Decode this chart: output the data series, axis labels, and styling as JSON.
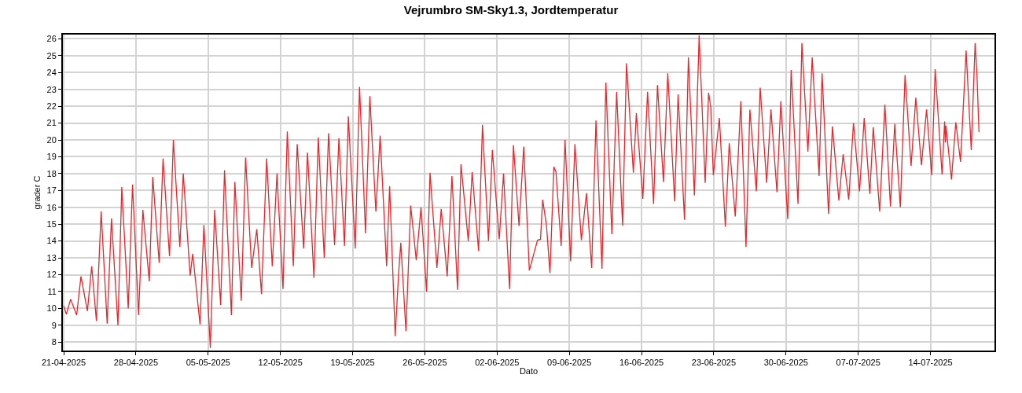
{
  "chart_data": {
    "type": "line",
    "title": "Vejrumbro SM-Sky1.3, Jordtemperatur",
    "xlabel": "Dato",
    "ylabel": "grader C",
    "series": [
      {
        "color": "#e8262b",
        "x": [
          "2025-04-21T00:00",
          "2025-04-21T06:00",
          "2025-04-21T16:00",
          "2025-04-22T06:00",
          "2025-04-22T16:00",
          "2025-04-23T07:00",
          "2025-04-23T17:00",
          "2025-04-24T04:00",
          "2025-04-24T15:00",
          "2025-04-25T05:00",
          "2025-04-25T15:00",
          "2025-04-26T06:00",
          "2025-04-26T15:00",
          "2025-04-27T06:00",
          "2025-04-27T16:00",
          "2025-04-28T06:00",
          "2025-04-28T16:00",
          "2025-04-29T07:00",
          "2025-04-29T15:00",
          "2025-04-30T06:00",
          "2025-04-30T15:00",
          "2025-05-01T06:00",
          "2025-05-01T15:00",
          "2025-05-02T06:00",
          "2025-05-02T14:00",
          "2025-05-03T06:00",
          "2025-05-03T12:00",
          "2025-05-04T05:00",
          "2025-05-04T14:00",
          "2025-05-05T05:00",
          "2025-05-05T15:00",
          "2025-05-06T05:00",
          "2025-05-06T14:00",
          "2025-05-07T06:00",
          "2025-05-07T14:00",
          "2025-05-08T05:00",
          "2025-05-08T15:00",
          "2025-05-09T05:00",
          "2025-05-09T17:00",
          "2025-05-10T04:00",
          "2025-05-10T16:00",
          "2025-05-11T05:00",
          "2025-05-11T16:00",
          "2025-05-12T06:00",
          "2025-05-12T16:00",
          "2025-05-13T06:00",
          "2025-05-13T15:00",
          "2025-05-14T06:00",
          "2025-05-14T15:00",
          "2025-05-15T06:00",
          "2025-05-15T16:00",
          "2025-05-16T06:00",
          "2025-05-16T16:00",
          "2025-05-17T06:00",
          "2025-05-17T16:00",
          "2025-05-18T05:00",
          "2025-05-18T14:00",
          "2025-05-19T06:00",
          "2025-05-19T16:00",
          "2025-05-20T06:00",
          "2025-05-20T16:00",
          "2025-05-21T06:00",
          "2025-05-21T16:00",
          "2025-05-22T07:00",
          "2025-05-22T14:00",
          "2025-05-23T03:00",
          "2025-05-23T11:00",
          "2025-05-23T16:00",
          "2025-05-24T04:00",
          "2025-05-24T15:00",
          "2025-05-25T04:00",
          "2025-05-25T15:00",
          "2025-05-26T04:00",
          "2025-05-26T12:00",
          "2025-05-27T04:00",
          "2025-05-27T14:00",
          "2025-05-28T04:00",
          "2025-05-28T15:00",
          "2025-05-29T04:00",
          "2025-05-29T12:00",
          "2025-05-30T05:00",
          "2025-05-30T14:00",
          "2025-05-31T05:00",
          "2025-05-31T14:00",
          "2025-06-01T04:00",
          "2025-06-01T13:00",
          "2025-06-02T05:00",
          "2025-06-02T15:00",
          "2025-06-03T05:00",
          "2025-06-03T14:00",
          "2025-06-04T03:00",
          "2025-06-04T14:00",
          "2025-06-05T03:00",
          "2025-06-05T22:00",
          "2025-06-06T05:00",
          "2025-06-06T10:00",
          "2025-06-06T19:00",
          "2025-06-07T03:00",
          "2025-06-07T12:00",
          "2025-06-07T17:00",
          "2025-06-08T05:00",
          "2025-06-08T14:00",
          "2025-06-09T03:00",
          "2025-06-09T13:00",
          "2025-06-10T04:00",
          "2025-06-10T16:00",
          "2025-06-11T04:00",
          "2025-06-11T14:00",
          "2025-06-12T04:00",
          "2025-06-12T13:00",
          "2025-06-13T03:00",
          "2025-06-13T14:00",
          "2025-06-14T04:00",
          "2025-06-14T13:00",
          "2025-06-15T05:00",
          "2025-06-15T12:00",
          "2025-06-16T03:00",
          "2025-06-16T14:00",
          "2025-06-17T04:00",
          "2025-06-17T13:00",
          "2025-06-18T03:00",
          "2025-06-18T13:00",
          "2025-06-19T05:00",
          "2025-06-19T13:00",
          "2025-06-20T04:00",
          "2025-06-20T13:00",
          "2025-06-21T03:00",
          "2025-06-21T14:00",
          "2025-06-22T04:00",
          "2025-06-22T12:00",
          "2025-06-22T17:00",
          "2025-06-22T23:00",
          "2025-06-23T13:00",
          "2025-06-24T03:00",
          "2025-06-24T12:00",
          "2025-06-25T02:00",
          "2025-06-25T15:00",
          "2025-06-26T03:00",
          "2025-06-26T12:00",
          "2025-06-27T03:00",
          "2025-06-27T12:00",
          "2025-06-28T03:00",
          "2025-06-28T13:00",
          "2025-06-29T03:00",
          "2025-06-29T12:00",
          "2025-06-30T04:00",
          "2025-06-30T12:00",
          "2025-07-01T04:00",
          "2025-07-01T13:00",
          "2025-07-02T03:00",
          "2025-07-02T13:00",
          "2025-07-03T05:00",
          "2025-07-03T12:00",
          "2025-07-04T03:00",
          "2025-07-04T12:00",
          "2025-07-05T03:00",
          "2025-07-05T13:00",
          "2025-07-06T02:00",
          "2025-07-06T13:00",
          "2025-07-07T03:00",
          "2025-07-07T14:00",
          "2025-07-08T03:00",
          "2025-07-08T11:00",
          "2025-07-09T02:00",
          "2025-07-09T14:00",
          "2025-07-10T03:00",
          "2025-07-10T13:00",
          "2025-07-11T02:00",
          "2025-07-11T13:00",
          "2025-07-12T03:00",
          "2025-07-12T14:00",
          "2025-07-13T03:00",
          "2025-07-13T15:00",
          "2025-07-14T03:00",
          "2025-07-14T11:00",
          "2025-07-15T03:00",
          "2025-07-15T09:00",
          "2025-07-15T11:00",
          "2025-07-15T12:00",
          "2025-07-16T01:00",
          "2025-07-16T11:00",
          "2025-07-16T22:00",
          "2025-07-17T11:00",
          "2025-07-17T23:00",
          "2025-07-18T08:00",
          "2025-07-18T12:00",
          "2025-07-18T17:00"
        ],
        "values": [
          10.15,
          9.65,
          10.55,
          9.6,
          11.9,
          9.85,
          12.5,
          9.25,
          15.75,
          9.1,
          15.35,
          9.0,
          17.2,
          10.0,
          17.35,
          9.6,
          15.85,
          11.6,
          17.8,
          12.7,
          18.9,
          13.1,
          20.0,
          13.65,
          18.0,
          11.95,
          13.25,
          9.05,
          14.95,
          7.65,
          15.85,
          10.2,
          18.2,
          9.6,
          17.5,
          10.45,
          18.95,
          12.4,
          14.7,
          10.85,
          18.9,
          12.5,
          18.0,
          11.15,
          20.5,
          12.5,
          19.75,
          13.55,
          19.25,
          11.8,
          20.15,
          13.0,
          20.4,
          13.75,
          20.1,
          13.7,
          21.4,
          13.55,
          23.15,
          14.45,
          22.6,
          15.75,
          20.25,
          12.5,
          17.25,
          8.35,
          12.1,
          13.9,
          8.65,
          16.1,
          12.85,
          16.0,
          11.0,
          18.05,
          12.4,
          15.9,
          11.9,
          17.85,
          11.1,
          18.55,
          14.0,
          18.1,
          13.4,
          20.9,
          14.0,
          19.4,
          14.1,
          18.0,
          11.15,
          19.7,
          14.9,
          19.6,
          12.25,
          14.05,
          14.1,
          16.45,
          14.9,
          12.1,
          18.4,
          18.1,
          13.7,
          20.0,
          12.8,
          19.75,
          14.05,
          16.85,
          12.4,
          21.15,
          12.35,
          23.4,
          14.4,
          22.85,
          14.9,
          24.55,
          18.05,
          21.6,
          16.5,
          22.85,
          16.2,
          23.25,
          17.5,
          23.95,
          16.35,
          22.7,
          15.25,
          24.9,
          16.7,
          26.2,
          17.45,
          22.8,
          21.95,
          17.9,
          21.3,
          14.85,
          19.8,
          15.45,
          22.3,
          13.65,
          21.8,
          16.95,
          23.1,
          17.45,
          21.8,
          16.9,
          22.3,
          15.3,
          24.15,
          16.2,
          25.75,
          19.3,
          24.9,
          17.85,
          23.95,
          15.6,
          20.8,
          16.4,
          19.15,
          16.45,
          21.0,
          16.95,
          21.3,
          16.8,
          20.75,
          15.75,
          22.1,
          16.05,
          20.95,
          16.0,
          23.85,
          18.45,
          22.5,
          18.5,
          21.8,
          17.9,
          24.2,
          17.95,
          21.1,
          19.85,
          20.85,
          17.65,
          21.05,
          18.7,
          25.3,
          19.4,
          25.75,
          24.0,
          20.45
        ]
      }
    ],
    "xlim": [
      "2025-04-20T22:00",
      "2025-07-20T05:00"
    ],
    "xticks": [
      {
        "value": "2025-04-21",
        "label": "21-04-2025"
      },
      {
        "value": "2025-04-28",
        "label": "28-04-2025"
      },
      {
        "value": "2025-05-05",
        "label": "05-05-2025"
      },
      {
        "value": "2025-05-12",
        "label": "12-05-2025"
      },
      {
        "value": "2025-05-19",
        "label": "19-05-2025"
      },
      {
        "value": "2025-05-26",
        "label": "26-05-2025"
      },
      {
        "value": "2025-06-02",
        "label": "02-06-2025"
      },
      {
        "value": "2025-06-09",
        "label": "09-06-2025"
      },
      {
        "value": "2025-06-16",
        "label": "16-06-2025"
      },
      {
        "value": "2025-06-23",
        "label": "23-06-2025"
      },
      {
        "value": "2025-06-30",
        "label": "30-06-2025"
      },
      {
        "value": "2025-07-07",
        "label": "07-07-2025"
      },
      {
        "value": "2025-07-14",
        "label": "14-07-2025"
      }
    ],
    "ylim": [
      7.5,
      26.25
    ],
    "yticks": [
      8,
      9,
      10,
      11,
      12,
      13,
      14,
      15,
      16,
      17,
      18,
      19,
      20,
      21,
      22,
      23,
      24,
      25,
      26
    ],
    "grid": true,
    "marker": "none",
    "line_style": "solid"
  }
}
